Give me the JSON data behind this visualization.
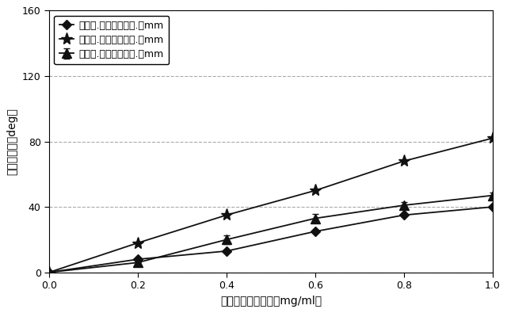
{
  "x": [
    0.0,
    0.2,
    0.4,
    0.6,
    0.8,
    1.0
  ],
  "series": [
    {
      "label": "溝幅０.２－溝深さ０.２mm",
      "y": [
        0,
        8,
        13,
        25,
        35,
        40
      ],
      "yerr": [
        0,
        0,
        0,
        0,
        0,
        0
      ],
      "marker": "D",
      "markersize": 6,
      "linewidth": 1.3
    },
    {
      "label": "溝幅０.４－溝深さ０.２mm",
      "y": [
        0,
        6,
        20,
        33,
        41,
        47
      ],
      "yerr": [
        0,
        0,
        2.5,
        2.5,
        2.0,
        2.0
      ],
      "marker": "^",
      "markersize": 8,
      "linewidth": 1.3
    },
    {
      "label": "溝幅０.６－溝深さ０.２mm",
      "y": [
        0,
        18,
        35,
        50,
        68,
        82
      ],
      "yerr": [
        0,
        0,
        0,
        0,
        0,
        0
      ],
      "marker": "*",
      "markersize": 11,
      "linewidth": 1.3
    }
  ],
  "xlabel": "ナノ金分散液濃度［mg/ml］",
  "ylabel": "位相シフト［deg］",
  "xlim": [
    0.0,
    1.0
  ],
  "ylim": [
    0,
    160
  ],
  "yticks": [
    0,
    40,
    80,
    120,
    160
  ],
  "xticks": [
    0.0,
    0.2,
    0.4,
    0.6,
    0.8,
    1.0
  ],
  "color": "#111111",
  "grid_color": "#aaaaaa",
  "background_color": "#ffffff",
  "legend_loc": "upper left",
  "axis_fontsize": 10,
  "tick_fontsize": 9,
  "legend_fontsize": 9
}
